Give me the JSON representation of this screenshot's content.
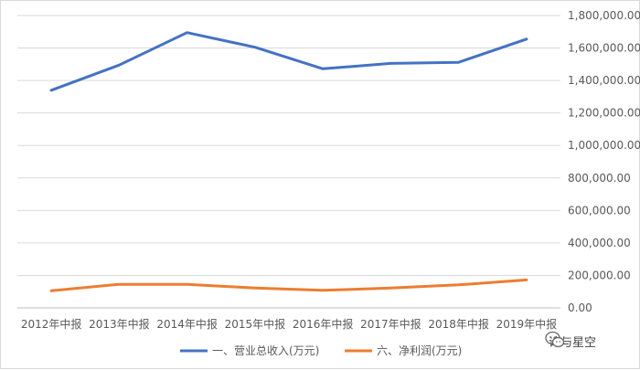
{
  "chart_data": {
    "type": "line",
    "categories": [
      "2012年中报",
      "2013年中报",
      "2014年中报",
      "2015年中报",
      "2016年中报",
      "2017年中报",
      "2018年中报",
      "2019年中报"
    ],
    "series": [
      {
        "name": "一、营业总收入(万元)",
        "color": "#4472C4",
        "values": [
          1340000,
          1495000,
          1695000,
          1605000,
          1472000,
          1505000,
          1512000,
          1655000
        ]
      },
      {
        "name": "六、净利润(万元)",
        "color": "#ED7D31",
        "values": [
          105000,
          145000,
          145000,
          122000,
          108000,
          122000,
          142000,
          172000
        ]
      }
    ],
    "ylim": [
      0,
      1800000
    ],
    "yticks": [
      0,
      200000,
      400000,
      600000,
      800000,
      1000000,
      1200000,
      1400000,
      1600000,
      1800000
    ],
    "yaxis_position": "right",
    "grid": true,
    "legend_position": "bottom",
    "title": "",
    "xlabel": "",
    "ylabel": ""
  },
  "watermark": {
    "text": "诗与星空",
    "icon": "wechat-icon"
  }
}
